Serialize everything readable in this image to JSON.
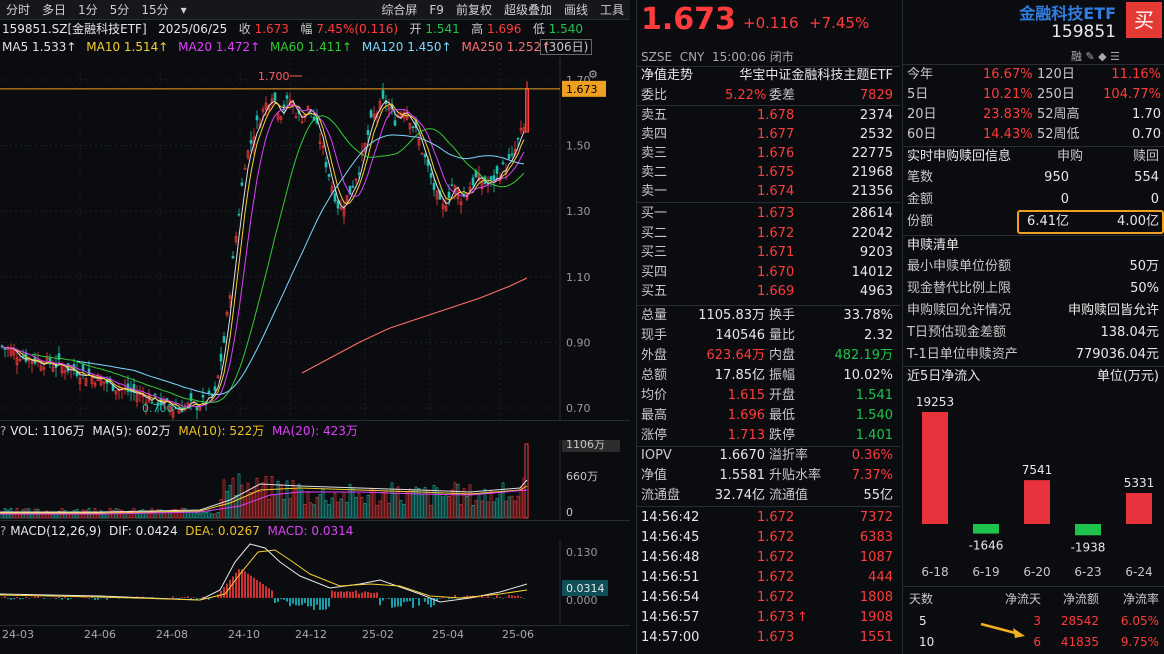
{
  "toolbar": {
    "left": [
      "分时",
      "多日",
      "1分",
      "5分",
      "15分"
    ],
    "right": [
      "综合屏",
      "F9",
      "前复权",
      "超级叠加",
      "画线",
      "工具"
    ]
  },
  "info": {
    "code": "159851.SZ[金融科技ETF]",
    "date": "2025/06/25",
    "close_lbl": "收",
    "close": "1.673",
    "chg_lbl": "幅",
    "chg": "7.45%(0.116)",
    "open_lbl": "开",
    "open": "1.541",
    "high_lbl": "高",
    "high": "1.696",
    "low_lbl": "低",
    "low": "1.540"
  },
  "ma": {
    "ma5": "MA5 1.533↑",
    "ma10": "MA10 1.514↑",
    "ma20": "MA20 1.472↑",
    "ma60": "MA60 1.411↑",
    "ma120": "MA120 1.450↑",
    "ma250": "MA250 1.252↑",
    "period": "(306日)"
  },
  "main_chart": {
    "price_ticks": [
      "1.70",
      "1.50",
      "1.30",
      "1.10",
      "0.90",
      "0.70"
    ],
    "hi_label": "1.700",
    "lo_label": "0.700",
    "current": "1.673"
  },
  "vol": {
    "title": "VOL: 1106万",
    "ma5": "MA(5): 602万",
    "ma10": "MA(10): 522万",
    "ma20": "MA(20): 423万",
    "ticks": [
      "1106万",
      "660万",
      "0"
    ]
  },
  "macd": {
    "title": "MACD(12,26,9)",
    "dif": "DIF: 0.0424",
    "dea": "DEA: 0.0267",
    "macd": "MACD: 0.0314",
    "ticks": [
      "0.130",
      "0.0314",
      "0.000"
    ]
  },
  "xaxis": [
    "24-03",
    "24-06",
    "24-08",
    "24-10",
    "24-12",
    "25-02",
    "25-04",
    "25-06"
  ],
  "quote": {
    "price": "1.673",
    "change": "+0.116",
    "pct": "+7.45%",
    "exchange": "SZSE",
    "currency": "CNY",
    "time": "15:00:06",
    "status": "闭市",
    "name": "金融科技ETF",
    "code": "159851",
    "buy": "买",
    "nav_lbl": "净值走势",
    "fullname": "华宝中证金融科技主题ETF",
    "weibi_lbl": "委比",
    "weibi": "5.22%",
    "weicha_lbl": "委差",
    "weicha": "7829"
  },
  "sells": [
    {
      "l": "卖五",
      "p": "1.678",
      "v": "2374"
    },
    {
      "l": "卖四",
      "p": "1.677",
      "v": "2532"
    },
    {
      "l": "卖三",
      "p": "1.676",
      "v": "22775"
    },
    {
      "l": "卖二",
      "p": "1.675",
      "v": "21968"
    },
    {
      "l": "卖一",
      "p": "1.674",
      "v": "21356"
    }
  ],
  "buys": [
    {
      "l": "买一",
      "p": "1.673",
      "v": "28614"
    },
    {
      "l": "买二",
      "p": "1.672",
      "v": "22042"
    },
    {
      "l": "买三",
      "p": "1.671",
      "v": "9203"
    },
    {
      "l": "买四",
      "p": "1.670",
      "v": "14012"
    },
    {
      "l": "买五",
      "p": "1.669",
      "v": "4963"
    }
  ],
  "stats": [
    {
      "a": "总量",
      "b": "1105.83万",
      "c": "换手",
      "d": "33.78%"
    },
    {
      "a": "现手",
      "b": "140546",
      "c": "量比",
      "d": "2.32"
    },
    {
      "a": "外盘",
      "b": "623.64万",
      "c": "内盘",
      "d": "482.19万"
    },
    {
      "a": "总额",
      "b": "17.85亿",
      "c": "振幅",
      "d": "10.02%"
    },
    {
      "a": "均价",
      "b": "1.615",
      "c": "开盘",
      "d": "1.541"
    },
    {
      "a": "最高",
      "b": "1.696",
      "c": "最低",
      "d": "1.540"
    },
    {
      "a": "涨停",
      "b": "1.713",
      "c": "跌停",
      "d": "1.401"
    }
  ],
  "iopv": [
    {
      "a": "IOPV",
      "b": "1.6670",
      "c": "溢折率",
      "d": "0.36%"
    },
    {
      "a": "净值",
      "b": "1.5581",
      "c": "升贴水率",
      "d": "7.37%"
    },
    {
      "a": "流通盘",
      "b": "32.74亿",
      "c": "流通值",
      "d": "55亿"
    }
  ],
  "ticks": [
    {
      "t": "14:56:42",
      "p": "1.672",
      "v": "7372"
    },
    {
      "t": "14:56:45",
      "p": "1.672",
      "v": "6383"
    },
    {
      "t": "14:56:48",
      "p": "1.672",
      "v": "1087"
    },
    {
      "t": "14:56:51",
      "p": "1.672",
      "v": "444"
    },
    {
      "t": "14:56:54",
      "p": "1.672",
      "v": "1808"
    },
    {
      "t": "14:56:57",
      "p": "1.673",
      "v": "1908",
      "up": "↑"
    },
    {
      "t": "14:57:00",
      "p": "1.673",
      "v": "1551"
    }
  ],
  "perf": [
    {
      "a": "今年",
      "b": "16.67%",
      "c": "120日",
      "d": "11.16%"
    },
    {
      "a": "5日",
      "b": "10.21%",
      "c": "250日",
      "d": "104.77%"
    },
    {
      "a": "20日",
      "b": "23.83%",
      "c": "52周高",
      "d": "1.70"
    },
    {
      "a": "60日",
      "b": "14.43%",
      "c": "52周低",
      "d": "0.70"
    }
  ],
  "flow": {
    "title": "实时申购赎回信息",
    "h1": "申购",
    "h2": "赎回",
    "rows": [
      {
        "a": "笔数",
        "b": "950",
        "c": "554"
      },
      {
        "a": "金额",
        "b": "0",
        "c": "0"
      },
      {
        "a": "份额",
        "b": "6.41亿",
        "c": "4.00亿"
      }
    ]
  },
  "list": {
    "title": "申赎清单",
    "rows": [
      {
        "a": "最小申赎单位份额",
        "b": "50万"
      },
      {
        "a": "现金替代比例上限",
        "b": "50%"
      },
      {
        "a": "申购赎回允许情况",
        "b": "申购赎回皆允许"
      },
      {
        "a": "T日预估现金差额",
        "b": "138.04元"
      },
      {
        "a": "T-1日单位申赎资产",
        "b": "779036.04元"
      }
    ]
  },
  "netflow": {
    "title": "近5日净流入",
    "unit": "单位(万元)"
  },
  "chart_data": {
    "type": "bar",
    "categories": [
      "6-18",
      "6-19",
      "6-20",
      "6-23",
      "6-24"
    ],
    "values": [
      19253,
      -1646,
      7541,
      -1938,
      5331
    ],
    "title": "近5日净流入",
    "ylabel": "单位(万元)"
  },
  "summary": {
    "headers": [
      "天数",
      "净流天",
      "净流额",
      "净流率"
    ],
    "rows": [
      {
        "d": "5",
        "n": "3",
        "a": "28542",
        "r": "6.05%"
      },
      {
        "d": "10",
        "n": "6",
        "a": "41835",
        "r": "9.75%"
      }
    ]
  }
}
